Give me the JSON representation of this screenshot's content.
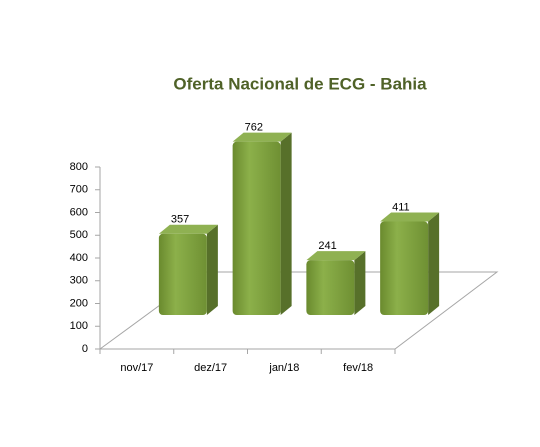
{
  "chart_data": {
    "type": "bar",
    "title": "Oferta Nacional de ECG - Bahia",
    "categories": [
      "nov/17",
      "dez/17",
      "jan/18",
      "fev/18"
    ],
    "values": [
      357,
      762,
      241,
      411
    ],
    "color": "#77933c",
    "ylim": [
      0,
      800
    ],
    "yticks": [
      0,
      100,
      200,
      300,
      400,
      500,
      600,
      700,
      800
    ]
  }
}
